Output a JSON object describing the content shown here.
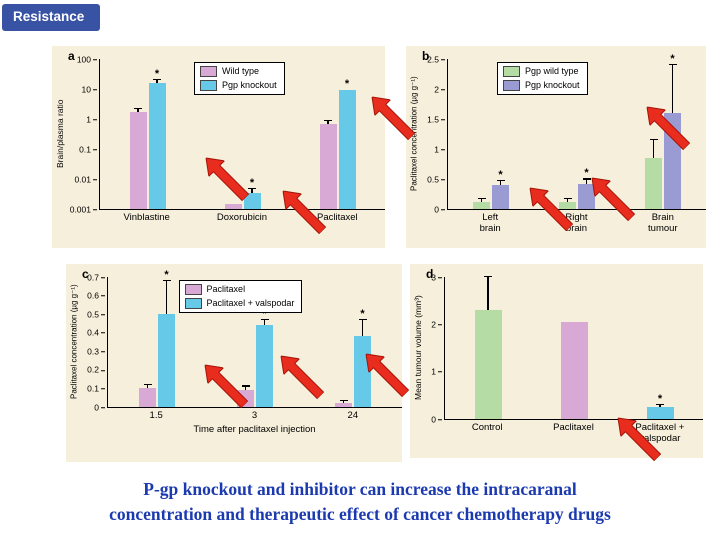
{
  "slide": {
    "badge": "Resistance",
    "badge_color": "#3953a4",
    "caption_line1": "P-gp knockout and inhibitor can increase the intracaranal",
    "caption_line2": "concentration and therapeutic effect of cancer chemotherapy drugs",
    "caption_color": "#1c3ab0",
    "arrow_color": "#e82c1e",
    "panel_background": "#f6efdb"
  },
  "chart_data": [
    {
      "id": "a",
      "panel_label": "a",
      "type": "bar",
      "scale": "log",
      "ylabel": "Brain/plasma ratio",
      "ylim": [
        0.001,
        100
      ],
      "yticks": [
        0.001,
        0.01,
        0.1,
        1,
        10,
        100
      ],
      "ytick_labels": [
        "0.001",
        "0.01",
        "0.1",
        "1",
        "10",
        "100"
      ],
      "categories": [
        "Vinblastine",
        "Doxorubicin",
        "Paclitaxel"
      ],
      "legend": [
        {
          "label": "Wild type",
          "color": "#d8a9d4"
        },
        {
          "label": "Pgp knockout",
          "color": "#66c9e8"
        }
      ],
      "series": [
        {
          "name": "Wild type",
          "color": "#d8a9d4",
          "values": [
            1.7,
            0.0015,
            0.7
          ],
          "errors": [
            0.4,
            0,
            0.15
          ],
          "asterisks": [
            false,
            false,
            false
          ]
        },
        {
          "name": "Pgp knockout",
          "color": "#66c9e8",
          "values": [
            16,
            0.0035,
            9
          ],
          "errors": [
            4,
            0.001,
            0
          ],
          "asterisks": [
            true,
            true,
            true
          ]
        }
      ]
    },
    {
      "id": "b",
      "panel_label": "b",
      "type": "bar",
      "scale": "linear",
      "ylabel": "Paclitaxel concentration (µg g⁻¹)",
      "ylim": [
        0,
        2.5
      ],
      "yticks": [
        0,
        0.5,
        1,
        1.5,
        2,
        2.5
      ],
      "ytick_labels": [
        "0",
        "0.5",
        "1",
        "1.5",
        "2",
        "2.5"
      ],
      "categories": [
        "Left\nbrain",
        "Right\nbrain",
        "Brain\ntumour"
      ],
      "legend": [
        {
          "label": "Pgp wild type",
          "color": "#b5dca4"
        },
        {
          "label": "Pgp knockout",
          "color": "#9b9bd4"
        }
      ],
      "series": [
        {
          "name": "Pgp wild type",
          "color": "#b5dca4",
          "values": [
            0.12,
            0.12,
            0.85
          ],
          "errors": [
            0.04,
            0.04,
            0.3
          ],
          "asterisks": [
            false,
            false,
            false
          ]
        },
        {
          "name": "Pgp knockout",
          "color": "#9b9bd4",
          "values": [
            0.4,
            0.42,
            1.6
          ],
          "errors": [
            0.07,
            0.07,
            0.8
          ],
          "asterisks": [
            true,
            true,
            true
          ]
        }
      ]
    },
    {
      "id": "c",
      "panel_label": "c",
      "type": "bar",
      "scale": "linear",
      "ylabel": "Paclitaxel concentration (µg g⁻¹)",
      "xlabel": "Time after paclitaxel injection",
      "ylim": [
        0,
        0.7
      ],
      "yticks": [
        0,
        0.1,
        0.2,
        0.3,
        0.4,
        0.5,
        0.6,
        0.7
      ],
      "ytick_labels": [
        "0",
        "0.1",
        "0.2",
        "0.3",
        "0.4",
        "0.5",
        "0.6",
        "0.7"
      ],
      "categories": [
        "1.5",
        "3",
        "24"
      ],
      "legend": [
        {
          "label": "Paclitaxel",
          "color": "#d8a9d4"
        },
        {
          "label": "Paclitaxel + valspodar",
          "color": "#66c9e8"
        }
      ],
      "series": [
        {
          "name": "Paclitaxel",
          "color": "#d8a9d4",
          "values": [
            0.1,
            0.09,
            0.02
          ],
          "errors": [
            0.02,
            0.02,
            0.01
          ],
          "asterisks": [
            false,
            false,
            false
          ]
        },
        {
          "name": "Paclitaxel + valspodar",
          "color": "#66c9e8",
          "values": [
            0.5,
            0.44,
            0.38
          ],
          "errors": [
            0.18,
            0.03,
            0.09
          ],
          "asterisks": [
            true,
            true,
            true
          ]
        }
      ]
    },
    {
      "id": "d",
      "panel_label": "d",
      "type": "bar",
      "scale": "linear",
      "ylabel": "Mean tumour volume (mm³)",
      "ylim": [
        0,
        3
      ],
      "yticks": [
        0,
        1,
        2,
        3
      ],
      "ytick_labels": [
        "0",
        "1",
        "2",
        "3"
      ],
      "categories": [
        "Control",
        "Paclitaxel",
        "Paclitaxel +\nvalspodar"
      ],
      "series": [
        {
          "name": "Mean tumour volume",
          "colors": [
            "#b5dca4",
            "#d8a9d4",
            "#66c9e8"
          ],
          "values": [
            2.3,
            2.05,
            0.25
          ],
          "errors": [
            0.7,
            0,
            0.05
          ],
          "asterisks": [
            false,
            false,
            true
          ]
        }
      ]
    }
  ]
}
